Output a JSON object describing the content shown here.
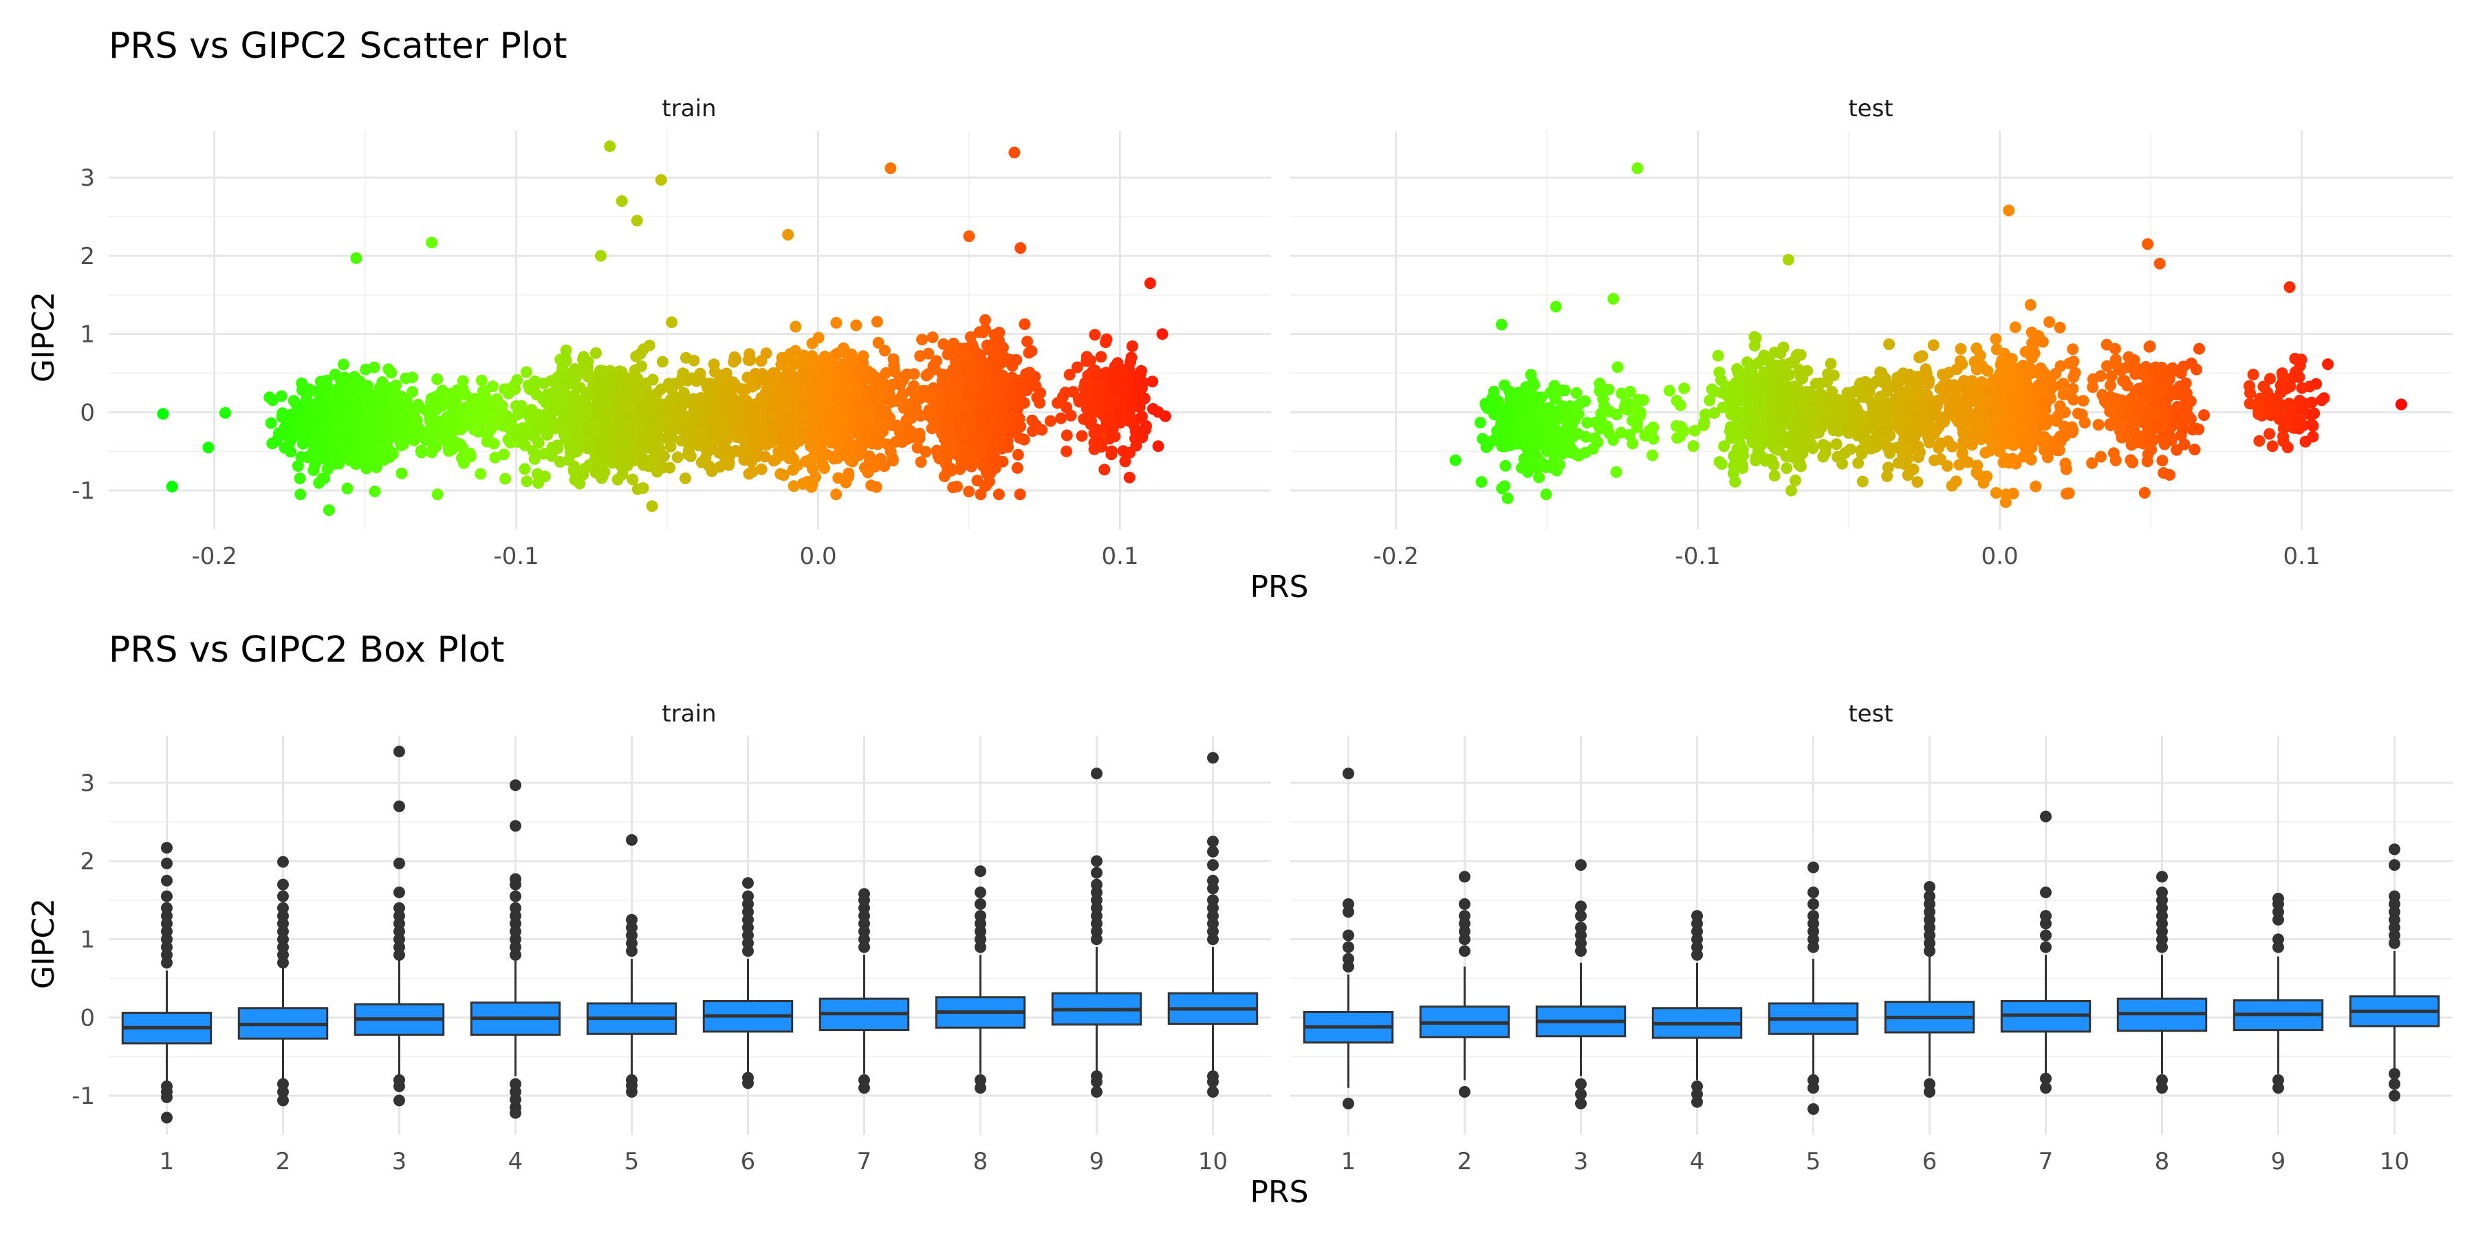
{
  "chart_data": [
    {
      "type": "scatter",
      "title": "PRS vs GIPC2 Scatter Plot",
      "xlabel": "PRS",
      "ylabel": "GIPC2",
      "xlim": [
        -0.235,
        0.15
      ],
      "ylim": [
        -1.5,
        3.6
      ],
      "x_ticks": [
        -0.2,
        -0.1,
        0.0,
        0.1
      ],
      "y_ticks": [
        -1,
        0,
        1,
        2,
        3
      ],
      "x_tick_labels": [
        "-0.2",
        "-0.1",
        "0.0",
        "0.1"
      ],
      "y_tick_labels": [
        "-1",
        "0",
        "1",
        "2",
        "3"
      ],
      "grid": true,
      "color_gradient": [
        "#00ff00",
        "#ff0000"
      ],
      "panels": [
        {
          "name": "train",
          "clusters": [
            {
              "x": -0.156,
              "y": -0.15,
              "sx": 0.01,
              "sy": 0.3,
              "n": 520
            },
            {
              "x": -0.12,
              "y": -0.1,
              "sx": 0.012,
              "sy": 0.25,
              "n": 180
            },
            {
              "x": -0.07,
              "y": -0.05,
              "sx": 0.013,
              "sy": 0.35,
              "n": 620
            },
            {
              "x": -0.03,
              "y": -0.05,
              "sx": 0.012,
              "sy": 0.3,
              "n": 420
            },
            {
              "x": 0.005,
              "y": 0.05,
              "sx": 0.011,
              "sy": 0.38,
              "n": 720
            },
            {
              "x": 0.052,
              "y": 0.05,
              "sx": 0.009,
              "sy": 0.38,
              "n": 720
            },
            {
              "x": 0.097,
              "y": 0.15,
              "sx": 0.006,
              "sy": 0.28,
              "n": 220
            }
          ],
          "outliers": [
            {
              "x": -0.217,
              "y": -0.02
            },
            {
              "x": -0.202,
              "y": -0.45
            },
            {
              "x": -0.214,
              "y": -0.95
            },
            {
              "x": -0.153,
              "y": 1.97
            },
            {
              "x": -0.128,
              "y": 2.17
            },
            {
              "x": -0.069,
              "y": 3.4
            },
            {
              "x": -0.065,
              "y": 2.7
            },
            {
              "x": -0.052,
              "y": 2.97
            },
            {
              "x": -0.06,
              "y": 2.45
            },
            {
              "x": -0.01,
              "y": 2.27
            },
            {
              "x": 0.024,
              "y": 3.12
            },
            {
              "x": 0.065,
              "y": 3.32
            },
            {
              "x": 0.05,
              "y": 2.25
            },
            {
              "x": 0.067,
              "y": 2.1
            },
            {
              "x": 0.11,
              "y": 1.65
            },
            {
              "x": 0.114,
              "y": 1.0
            },
            {
              "x": -0.162,
              "y": -1.25
            },
            {
              "x": -0.055,
              "y": -1.2
            },
            {
              "x": -0.072,
              "y": 2.0
            },
            {
              "x": 0.046,
              "y": -0.95
            },
            {
              "x": 0.115,
              "y": -0.05
            }
          ]
        },
        {
          "name": "test",
          "clusters": [
            {
              "x": -0.155,
              "y": -0.2,
              "sx": 0.007,
              "sy": 0.28,
              "n": 260
            },
            {
              "x": -0.125,
              "y": -0.1,
              "sx": 0.01,
              "sy": 0.25,
              "n": 70
            },
            {
              "x": -0.075,
              "y": 0.0,
              "sx": 0.01,
              "sy": 0.35,
              "n": 380
            },
            {
              "x": -0.035,
              "y": -0.05,
              "sx": 0.012,
              "sy": 0.3,
              "n": 300
            },
            {
              "x": 0.003,
              "y": 0.05,
              "sx": 0.01,
              "sy": 0.4,
              "n": 400
            },
            {
              "x": 0.05,
              "y": 0.05,
              "sx": 0.008,
              "sy": 0.35,
              "n": 260
            },
            {
              "x": 0.095,
              "y": 0.1,
              "sx": 0.005,
              "sy": 0.28,
              "n": 90
            }
          ],
          "outliers": [
            {
              "x": -0.12,
              "y": 3.12
            },
            {
              "x": 0.003,
              "y": 2.58
            },
            {
              "x": 0.049,
              "y": 2.15
            },
            {
              "x": 0.053,
              "y": 1.9
            },
            {
              "x": -0.07,
              "y": 1.95
            },
            {
              "x": -0.165,
              "y": 1.12
            },
            {
              "x": -0.147,
              "y": 1.35
            },
            {
              "x": -0.128,
              "y": 1.45
            },
            {
              "x": 0.133,
              "y": 0.1
            },
            {
              "x": 0.096,
              "y": 1.6
            },
            {
              "x": 0.002,
              "y": -1.15
            },
            {
              "x": 0.048,
              "y": -1.03
            },
            {
              "x": -0.163,
              "y": -1.1
            }
          ]
        }
      ]
    },
    {
      "type": "box",
      "title": "PRS vs GIPC2 Box Plot",
      "xlabel": "PRS",
      "ylabel": "GIPC2",
      "categories": [
        "1",
        "2",
        "3",
        "4",
        "5",
        "6",
        "7",
        "8",
        "9",
        "10"
      ],
      "ylim": [
        -1.5,
        3.6
      ],
      "y_ticks": [
        -1,
        0,
        1,
        2,
        3
      ],
      "y_tick_labels": [
        "-1",
        "0",
        "1",
        "2",
        "3"
      ],
      "grid": true,
      "box_color": "#1e90ff",
      "panels": [
        {
          "name": "train",
          "boxes": [
            {
              "q1": -0.33,
              "med": -0.13,
              "q3": 0.06,
              "low": -0.85,
              "high": 0.6,
              "out": [
                2.17,
                1.97,
                1.75,
                1.55,
                1.4,
                1.3,
                1.2,
                1.1,
                1.0,
                0.9,
                0.8,
                0.7,
                -0.88,
                -0.95,
                -1.02,
                -1.28
              ]
            },
            {
              "q1": -0.27,
              "med": -0.09,
              "q3": 0.12,
              "low": -0.8,
              "high": 0.65,
              "out": [
                1.99,
                1.7,
                1.55,
                1.4,
                1.3,
                1.2,
                1.1,
                1.0,
                0.9,
                0.8,
                0.7,
                -0.85,
                -0.95,
                -1.06
              ]
            },
            {
              "q1": -0.22,
              "med": -0.02,
              "q3": 0.17,
              "low": -0.75,
              "high": 0.75,
              "out": [
                3.4,
                2.7,
                1.97,
                1.6,
                1.4,
                1.3,
                1.2,
                1.1,
                1.0,
                0.9,
                0.8,
                -0.8,
                -0.88,
                -1.06
              ]
            },
            {
              "q1": -0.22,
              "med": -0.01,
              "q3": 0.19,
              "low": -0.75,
              "high": 0.75,
              "out": [
                2.97,
                2.45,
                1.77,
                1.7,
                1.55,
                1.4,
                1.3,
                1.2,
                1.1,
                1.0,
                0.9,
                0.8,
                -0.85,
                -0.95,
                -1.05,
                -1.15,
                -1.22
              ]
            },
            {
              "q1": -0.21,
              "med": -0.01,
              "q3": 0.18,
              "low": -0.75,
              "high": 0.75,
              "out": [
                2.27,
                1.25,
                1.15,
                1.05,
                0.95,
                0.85,
                -0.8,
                -0.87,
                -0.95
              ]
            },
            {
              "q1": -0.18,
              "med": 0.02,
              "q3": 0.21,
              "low": -0.72,
              "high": 0.75,
              "out": [
                1.72,
                1.55,
                1.45,
                1.35,
                1.25,
                1.15,
                1.05,
                0.95,
                0.85,
                -0.77,
                -0.84
              ]
            },
            {
              "q1": -0.16,
              "med": 0.05,
              "q3": 0.24,
              "low": -0.72,
              "high": 0.8,
              "out": [
                1.58,
                1.5,
                1.4,
                1.3,
                1.2,
                1.1,
                1.0,
                0.9,
                -0.8,
                -0.9
              ]
            },
            {
              "q1": -0.13,
              "med": 0.07,
              "q3": 0.26,
              "low": -0.72,
              "high": 0.8,
              "out": [
                1.87,
                1.6,
                1.45,
                1.3,
                1.2,
                1.1,
                1.0,
                0.9,
                -0.8,
                -0.9
              ]
            },
            {
              "q1": -0.09,
              "med": 0.1,
              "q3": 0.31,
              "low": -0.7,
              "high": 0.9,
              "out": [
                3.12,
                2.0,
                1.85,
                1.7,
                1.6,
                1.5,
                1.4,
                1.3,
                1.2,
                1.1,
                1.0,
                -0.75,
                -0.82,
                -0.95
              ]
            },
            {
              "q1": -0.08,
              "med": 0.11,
              "q3": 0.31,
              "low": -0.7,
              "high": 0.9,
              "out": [
                3.32,
                2.25,
                2.12,
                1.95,
                1.75,
                1.65,
                1.5,
                1.4,
                1.3,
                1.2,
                1.1,
                1.0,
                -0.75,
                -0.82,
                -0.95
              ]
            }
          ]
        },
        {
          "name": "test",
          "boxes": [
            {
              "q1": -0.32,
              "med": -0.12,
              "q3": 0.07,
              "low": -0.9,
              "high": 0.55,
              "out": [
                3.12,
                1.45,
                1.35,
                1.05,
                0.9,
                0.75,
                0.65,
                -1.1
              ]
            },
            {
              "q1": -0.25,
              "med": -0.07,
              "q3": 0.14,
              "low": -0.8,
              "high": 0.65,
              "out": [
                1.8,
                1.45,
                1.3,
                1.2,
                1.1,
                1.0,
                0.85,
                -0.95
              ]
            },
            {
              "q1": -0.24,
              "med": -0.05,
              "q3": 0.14,
              "low": -0.75,
              "high": 0.7,
              "out": [
                1.95,
                1.42,
                1.3,
                1.15,
                1.05,
                0.95,
                0.85,
                -0.85,
                -0.98,
                -1.1
              ]
            },
            {
              "q1": -0.26,
              "med": -0.08,
              "q3": 0.12,
              "low": -0.8,
              "high": 0.7,
              "out": [
                1.3,
                1.2,
                1.1,
                1.0,
                0.9,
                0.8,
                -0.88,
                -0.98,
                -1.08
              ]
            },
            {
              "q1": -0.21,
              "med": -0.02,
              "q3": 0.18,
              "low": -0.75,
              "high": 0.75,
              "out": [
                1.92,
                1.6,
                1.45,
                1.3,
                1.2,
                1.1,
                1.0,
                0.9,
                -0.8,
                -0.9,
                -1.17
              ]
            },
            {
              "q1": -0.19,
              "med": 0.0,
              "q3": 0.2,
              "low": -0.75,
              "high": 0.8,
              "out": [
                1.67,
                1.55,
                1.45,
                1.35,
                1.25,
                1.15,
                1.05,
                0.95,
                0.85,
                -0.85,
                -0.95
              ]
            },
            {
              "q1": -0.18,
              "med": 0.03,
              "q3": 0.21,
              "low": -0.72,
              "high": 0.8,
              "out": [
                2.57,
                1.6,
                1.3,
                1.2,
                1.05,
                0.9,
                -0.78,
                -0.9
              ]
            },
            {
              "q1": -0.17,
              "med": 0.05,
              "q3": 0.24,
              "low": -0.72,
              "high": 0.8,
              "out": [
                1.8,
                1.6,
                1.5,
                1.4,
                1.3,
                1.2,
                1.1,
                1.0,
                0.9,
                -0.8,
                -0.9
              ]
            },
            {
              "q1": -0.16,
              "med": 0.04,
              "q3": 0.22,
              "low": -0.72,
              "high": 0.78,
              "out": [
                1.52,
                1.45,
                1.35,
                1.25,
                1.0,
                0.9,
                -0.8,
                -0.9
              ]
            },
            {
              "q1": -0.11,
              "med": 0.08,
              "q3": 0.27,
              "low": -0.65,
              "high": 0.85,
              "out": [
                2.15,
                1.95,
                1.55,
                1.45,
                1.35,
                1.25,
                1.15,
                1.05,
                0.95,
                -0.72,
                -0.85,
                -1.0
              ]
            }
          ]
        }
      ]
    }
  ]
}
